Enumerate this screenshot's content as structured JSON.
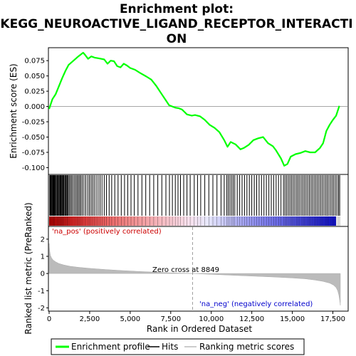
{
  "chart_data": {
    "type": "line",
    "title_lines": [
      "Enrichment plot:",
      "KEGG_NEUROACTIVE_LIGAND_RECEPTOR_INTERACTI",
      "ON"
    ],
    "es_panel": {
      "ylabel": "Enrichment score (ES)",
      "ylim": [
        -0.11,
        0.095
      ],
      "yticks": [
        0.075,
        0.05,
        0.025,
        0.0,
        -0.025,
        -0.05,
        -0.075,
        -0.1
      ],
      "ytick_labels": [
        "0.075",
        "0.050",
        "0.025",
        "0.000",
        "-0.025",
        "-0.050",
        "-0.075",
        "-0.100"
      ],
      "series": [
        {
          "name": "Enrichment profile",
          "color": "#00ff00",
          "x": [
            0,
            200,
            400,
            600,
            800,
            1000,
            1200,
            1500,
            1800,
            2000,
            2100,
            2200,
            2400,
            2600,
            2800,
            3000,
            3200,
            3400,
            3600,
            3800,
            4000,
            4200,
            4400,
            4600,
            4800,
            5000,
            5300,
            5600,
            6000,
            6300,
            6600,
            6900,
            7200,
            7400,
            7600,
            7800,
            8000,
            8200,
            8500,
            8800,
            9000,
            9300,
            9600,
            9900,
            10200,
            10500,
            10800,
            11000,
            11200,
            11500,
            11800,
            12000,
            12300,
            12600,
            12900,
            13200,
            13500,
            13800,
            14000,
            14300,
            14500,
            14700,
            14900,
            15200,
            15500,
            15800,
            16100,
            16400,
            16700,
            16900,
            17100,
            17300,
            17500,
            17700,
            17900
          ],
          "y": [
            -0.004,
            0.012,
            0.02,
            0.033,
            0.046,
            0.058,
            0.068,
            0.075,
            0.082,
            0.086,
            0.088,
            0.085,
            0.078,
            0.082,
            0.08,
            0.079,
            0.078,
            0.077,
            0.07,
            0.075,
            0.074,
            0.066,
            0.064,
            0.07,
            0.067,
            0.063,
            0.06,
            0.055,
            0.049,
            0.044,
            0.034,
            0.022,
            0.01,
            0.002,
            0.0,
            -0.002,
            -0.003,
            -0.005,
            -0.013,
            -0.015,
            -0.014,
            -0.016,
            -0.022,
            -0.03,
            -0.035,
            -0.042,
            -0.055,
            -0.066,
            -0.058,
            -0.062,
            -0.07,
            -0.068,
            -0.063,
            -0.055,
            -0.052,
            -0.05,
            -0.06,
            -0.065,
            -0.072,
            -0.085,
            -0.097,
            -0.094,
            -0.082,
            -0.078,
            -0.076,
            -0.073,
            -0.075,
            -0.075,
            -0.068,
            -0.06,
            -0.04,
            -0.03,
            -0.022,
            -0.015,
            0.001
          ]
        }
      ],
      "zero_line": 0.0
    },
    "hits_panel": {
      "legend_name": "Hits",
      "color": "#000000",
      "positions": [
        40,
        70,
        110,
        150,
        200,
        240,
        280,
        310,
        350,
        400,
        450,
        500,
        540,
        580,
        630,
        680,
        720,
        760,
        810,
        860,
        900,
        960,
        1010,
        1060,
        1110,
        1160,
        1230,
        1300,
        1380,
        1460,
        1550,
        1640,
        1720,
        1800,
        1880,
        1960,
        2050,
        2150,
        2260,
        2380,
        2480,
        2580,
        2680,
        2780,
        2900,
        3020,
        3140,
        3260,
        3400,
        3540,
        3700,
        3860,
        4050,
        4250,
        4450,
        4650,
        4850,
        5050,
        5250,
        5480,
        5720,
        5960,
        6200,
        6450,
        6700,
        6950,
        7200,
        7420,
        7600,
        7780,
        7950,
        8100,
        8300,
        8500,
        8700,
        8950,
        9150,
        9350,
        9600,
        9850,
        10100,
        10350,
        10600,
        10800,
        10950,
        11050,
        11150,
        11250,
        11350,
        11450,
        11600,
        11750,
        11900,
        12050,
        12200,
        12350,
        12500,
        12650,
        12800,
        12950,
        13100,
        13250,
        13400,
        13550,
        13700,
        13850,
        14000,
        14150,
        14300,
        14450,
        14550,
        14650,
        14750,
        14850,
        14950,
        15050,
        15150,
        15250,
        15350,
        15450,
        15550,
        15650,
        15750,
        15850,
        15950,
        16050,
        16150,
        16250,
        16350,
        16450,
        16550,
        16650,
        16750,
        16850,
        16950,
        17050,
        17150,
        17250,
        17350,
        17450,
        17550,
        17650,
        17750,
        17850,
        17920
      ]
    },
    "ranked_panel": {
      "ylabel": "Ranked list metric (PreRanked)",
      "ylim": [
        -2.15,
        2.7
      ],
      "yticks": [
        2,
        1,
        0,
        -1,
        -2
      ],
      "ytick_labels": [
        "2",
        "1",
        "0",
        "-1",
        "-2"
      ],
      "legend_name": "Ranking metric scores",
      "fill_color": "#bbbbbb",
      "x": [
        0,
        30,
        80,
        150,
        250,
        400,
        600,
        900,
        1300,
        1800,
        2500,
        3500,
        4500,
        5500,
        6500,
        7500,
        8849,
        10000,
        11000,
        12000,
        13000,
        14000,
        15000,
        15800,
        16400,
        16900,
        17300,
        17550,
        17700,
        17800,
        17870,
        17920,
        17960
      ],
      "y": [
        1.75,
        1.35,
        1.05,
        0.9,
        0.78,
        0.68,
        0.58,
        0.5,
        0.42,
        0.36,
        0.3,
        0.23,
        0.17,
        0.12,
        0.08,
        0.04,
        0.0,
        -0.05,
        -0.09,
        -0.13,
        -0.17,
        -0.21,
        -0.26,
        -0.31,
        -0.38,
        -0.46,
        -0.56,
        -0.68,
        -0.82,
        -1.0,
        -1.25,
        -1.55,
        -1.85
      ]
    },
    "x_axis": {
      "label": "Rank in Ordered Dataset",
      "xlim": [
        0,
        18400
      ],
      "ticks": [
        0,
        2500,
        5000,
        7500,
        10000,
        12500,
        15000,
        17500
      ],
      "tick_labels": [
        "0",
        "2,500",
        "5,000",
        "7,500",
        "10,000",
        "12,500",
        "15,000",
        "17,500"
      ]
    },
    "annotations": {
      "positive": "'na_pos' (positively correlated)",
      "negative": "'na_neg' (negatively correlated)",
      "zero_cross": "Zero cross at 8849",
      "zero_cross_rank": 8849,
      "positive_color": "#cc0000",
      "negative_color": "#0000cc"
    },
    "legend": {
      "entries": [
        "Enrichment profile",
        "Hits",
        "Ranking metric scores"
      ],
      "placement": "bottom"
    }
  }
}
